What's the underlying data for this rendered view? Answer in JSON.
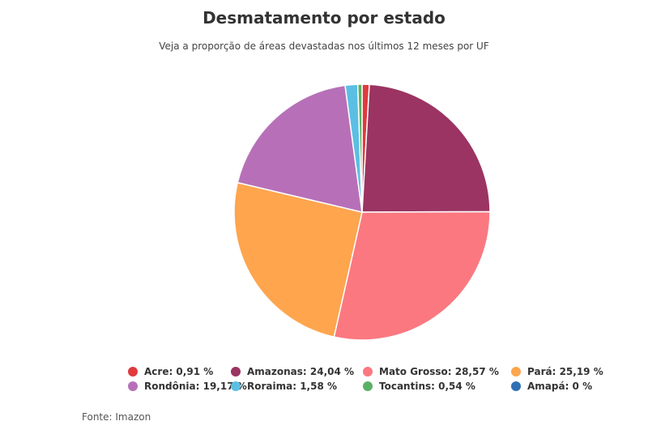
{
  "chart_data": {
    "type": "pie",
    "title": "Desmatamento por estado",
    "subtitle": "Veja a proporção de áreas devastadas nos últimos 12 meses por UF",
    "slices": [
      {
        "label": "Acre",
        "value": 0.91,
        "display": "0,91 %",
        "color": "#e03a3e"
      },
      {
        "label": "Amazonas",
        "value": 24.04,
        "display": "24,04 %",
        "color": "#9b3462"
      },
      {
        "label": "Mato Grosso",
        "value": 28.57,
        "display": "28,57 %",
        "color": "#fb7880"
      },
      {
        "label": "Pará",
        "value": 25.19,
        "display": "25,19 %",
        "color": "#fea54e"
      },
      {
        "label": "Rondônia",
        "value": 19.17,
        "display": "19,17 %",
        "color": "#b770b8"
      },
      {
        "label": "Roraima",
        "value": 1.58,
        "display": "1,58 %",
        "color": "#5bbfe3"
      },
      {
        "label": "Tocantins",
        "value": 0.54,
        "display": "0,54 %",
        "color": "#5ab165"
      },
      {
        "label": "Amapá",
        "value": 0,
        "display": "0 %",
        "color": "#2e6fb5"
      }
    ],
    "legend_position": "bottom",
    "source": "Fonte: Imazon"
  }
}
